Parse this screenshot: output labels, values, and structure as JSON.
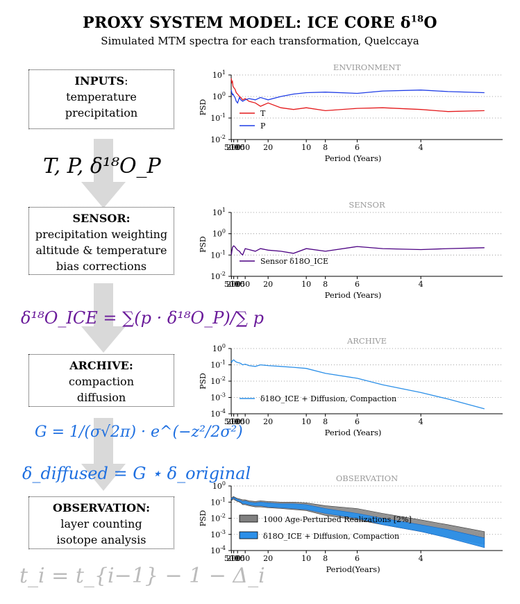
{
  "title": {
    "text": "PROXY SYSTEM MODEL: ICE CORE δ",
    "sup": "18",
    "tail": "O"
  },
  "subtitle": "Simulated MTM spectra for each transformation, Quelccaya",
  "boxes": [
    {
      "heading": "INPUTS",
      "heading_suffix": ":",
      "lines": [
        "temperature",
        "precipitation"
      ]
    },
    {
      "heading": "SENSOR:",
      "heading_suffix": "",
      "lines": [
        "precipitation weighting",
        "altitude & temperature",
        "bias corrections"
      ]
    },
    {
      "heading": "ARCHIVE:",
      "heading_suffix": "",
      "lines": [
        "compaction",
        "diffusion"
      ]
    },
    {
      "heading": "OBSERVATION:",
      "heading_suffix": "",
      "lines": [
        "layer counting",
        "isotope analysis"
      ]
    }
  ],
  "equations": {
    "inputs": "T, P, δ¹⁸O_P",
    "sensor": "δ¹⁸O_ICE = ∑(p · δ¹⁸O_P)/∑ p",
    "archive_kernel": "G = 1/(σ√2π) · e^(−z²/2σ²)",
    "archive_conv": "δ_diffused = G ⋆ δ_original",
    "observation": "t_i = t_{i−1} − 1 − Δ_i"
  },
  "colors": {
    "T": "#e41a1c",
    "P": "#1f3de6",
    "sensor": "#4b0082",
    "archive": "#2b8fe8",
    "band": "#808080",
    "eq_sensor": "#6a1b9a",
    "eq_archive": "#1e6fe0",
    "eq_obs": "#bbbbbb",
    "arrow": "#d9d9d9"
  },
  "chart_data": [
    {
      "type": "line",
      "title": "ENVIRONMENT",
      "xlabel": "Period (Years)",
      "ylabel": "PSD",
      "xscale": "reciprocal",
      "xticks": [
        500,
        200,
        100,
        50,
        20,
        10,
        8,
        6,
        4
      ],
      "yscale": "log",
      "ylim": [
        0.01,
        10
      ],
      "yticks": [
        "10^1",
        "10^0",
        "10^-1",
        "10^-2"
      ],
      "legend": "bottom-left",
      "series": [
        {
          "name": "T",
          "color": "#e41a1c",
          "x": [
            600,
            500,
            400,
            300,
            250,
            200,
            150,
            120,
            100,
            80,
            70,
            60,
            50,
            40,
            30,
            25,
            20,
            15,
            12,
            10,
            8,
            6,
            5,
            4,
            3.5,
            3
          ],
          "y": [
            7,
            6,
            4.5,
            5,
            3,
            2.6,
            2.2,
            1.5,
            1.3,
            1.0,
            0.9,
            0.7,
            0.8,
            0.6,
            0.5,
            0.35,
            0.5,
            0.3,
            0.25,
            0.3,
            0.22,
            0.28,
            0.3,
            0.25,
            0.2,
            0.22
          ]
        },
        {
          "name": "P",
          "color": "#1f3de6",
          "x": [
            600,
            500,
            400,
            300,
            250,
            200,
            150,
            120,
            100,
            80,
            70,
            60,
            50,
            40,
            30,
            25,
            20,
            15,
            12,
            10,
            8,
            6,
            5,
            4,
            3.5,
            3
          ],
          "y": [
            2.0,
            1.8,
            1.5,
            1.2,
            1.3,
            1.1,
            0.9,
            0.6,
            0.5,
            0.9,
            0.7,
            0.6,
            0.7,
            0.8,
            0.7,
            0.9,
            0.7,
            1.0,
            1.3,
            1.5,
            1.6,
            1.4,
            1.8,
            2.0,
            1.7,
            1.5
          ]
        }
      ]
    },
    {
      "type": "line",
      "title": "SENSOR",
      "xlabel": "Period (Years)",
      "ylabel": "PSD",
      "xscale": "reciprocal",
      "xticks": [
        500,
        200,
        100,
        50,
        20,
        10,
        8,
        6,
        4
      ],
      "yscale": "log",
      "ylim": [
        0.01,
        10
      ],
      "yticks": [
        "10^1",
        "10^0",
        "10^-1",
        "10^-2"
      ],
      "legend": "bottom-left",
      "series": [
        {
          "name": "Sensor δ18O_ICE",
          "color": "#4b0082",
          "x": [
            600,
            500,
            400,
            300,
            250,
            200,
            150,
            120,
            100,
            80,
            70,
            60,
            50,
            40,
            30,
            25,
            20,
            15,
            12,
            10,
            8,
            6,
            5,
            4,
            3.5,
            3
          ],
          "y": [
            0.1,
            0.11,
            0.15,
            0.22,
            0.25,
            0.27,
            0.24,
            0.2,
            0.17,
            0.15,
            0.12,
            0.1,
            0.2,
            0.18,
            0.15,
            0.2,
            0.17,
            0.15,
            0.12,
            0.2,
            0.15,
            0.25,
            0.2,
            0.18,
            0.2,
            0.22
          ]
        }
      ]
    },
    {
      "type": "line",
      "title": "ARCHIVE",
      "xlabel": "Period (Years)",
      "ylabel": "PSD",
      "xscale": "reciprocal",
      "xticks": [
        500,
        200,
        100,
        50,
        20,
        10,
        8,
        6,
        4
      ],
      "yscale": "log",
      "ylim": [
        0.0001,
        1
      ],
      "yticks": [
        "10^0",
        "10^-1",
        "10^-2",
        "10^-3",
        "10^-4"
      ],
      "legend": "bottom-left",
      "series": [
        {
          "name": "δ18O_ICE + Diffusion, Compaction",
          "color": "#2b8fe8",
          "x": [
            600,
            500,
            400,
            300,
            250,
            200,
            150,
            120,
            100,
            80,
            70,
            60,
            50,
            40,
            30,
            25,
            20,
            15,
            12,
            10,
            8,
            6,
            5,
            4,
            3.5,
            3
          ],
          "y": [
            0.17,
            0.17,
            0.15,
            0.18,
            0.19,
            0.2,
            0.17,
            0.15,
            0.14,
            0.13,
            0.12,
            0.1,
            0.11,
            0.09,
            0.08,
            0.1,
            0.09,
            0.08,
            0.07,
            0.06,
            0.03,
            0.015,
            0.006,
            0.002,
            0.0008,
            0.0002
          ]
        }
      ]
    },
    {
      "type": "area",
      "title": "OBSERVATION",
      "xlabel": "Period(Years)",
      "ylabel": "PSD",
      "xscale": "reciprocal",
      "xticks": [
        500,
        200,
        100,
        50,
        20,
        10,
        8,
        6,
        4
      ],
      "yscale": "log",
      "ylim": [
        0.0001,
        1
      ],
      "yticks": [
        "10^0",
        "10^-1",
        "10^-2",
        "10^-3",
        "10^-4"
      ],
      "legend": "center-left",
      "series": [
        {
          "name": "1000 Age-Perturbed Realizations [2%]",
          "color": "#808080",
          "x": [
            600,
            500,
            400,
            300,
            250,
            200,
            150,
            120,
            100,
            80,
            70,
            60,
            50,
            40,
            30,
            25,
            20,
            15,
            12,
            10,
            8,
            6,
            5,
            4,
            3.5,
            3
          ],
          "lower": [
            0.15,
            0.15,
            0.13,
            0.14,
            0.15,
            0.15,
            0.13,
            0.12,
            0.11,
            0.1,
            0.09,
            0.07,
            0.07,
            0.06,
            0.05,
            0.05,
            0.045,
            0.04,
            0.035,
            0.03,
            0.015,
            0.008,
            0.004,
            0.0015,
            0.0007,
            0.00025
          ],
          "upper": [
            0.2,
            0.2,
            0.18,
            0.2,
            0.22,
            0.22,
            0.2,
            0.18,
            0.17,
            0.16,
            0.15,
            0.14,
            0.14,
            0.12,
            0.11,
            0.12,
            0.11,
            0.1,
            0.1,
            0.09,
            0.06,
            0.04,
            0.02,
            0.008,
            0.004,
            0.0015
          ]
        },
        {
          "name": "δ18O_ICE + Diffusion, Compaction",
          "color": "#2b8fe8",
          "x": [
            600,
            500,
            400,
            300,
            250,
            200,
            150,
            120,
            100,
            80,
            70,
            60,
            50,
            40,
            30,
            25,
            20,
            15,
            12,
            10,
            8,
            6,
            5,
            4,
            3.5,
            3
          ],
          "lower": [
            0.16,
            0.16,
            0.14,
            0.16,
            0.17,
            0.18,
            0.15,
            0.13,
            0.12,
            0.11,
            0.1,
            0.08,
            0.08,
            0.07,
            0.06,
            0.06,
            0.05,
            0.045,
            0.04,
            0.035,
            0.02,
            0.01,
            0.004,
            0.0015,
            0.0006,
            0.00015
          ],
          "upper": [
            0.18,
            0.18,
            0.16,
            0.18,
            0.19,
            0.2,
            0.18,
            0.16,
            0.15,
            0.14,
            0.13,
            0.11,
            0.12,
            0.1,
            0.09,
            0.1,
            0.09,
            0.08,
            0.08,
            0.07,
            0.04,
            0.02,
            0.01,
            0.004,
            0.002,
            0.0006
          ]
        }
      ]
    }
  ]
}
